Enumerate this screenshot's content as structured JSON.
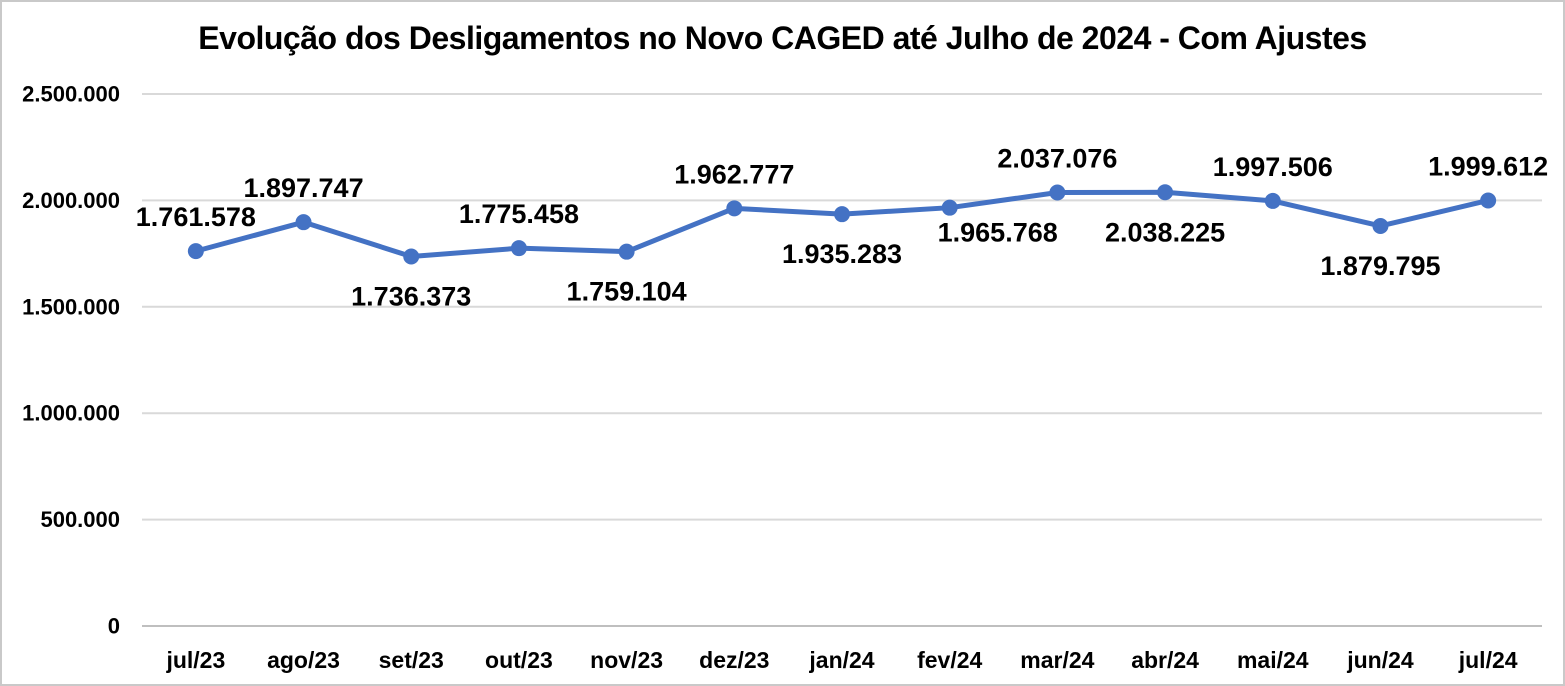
{
  "chart_data": {
    "type": "line",
    "title": "Evolução dos Desligamentos no Novo CAGED até Julho de 2024 - Com Ajustes",
    "xlabel": "",
    "ylabel": "",
    "legend": "none",
    "grid": "horizontal",
    "categories": [
      "jul/23",
      "ago/23",
      "set/23",
      "out/23",
      "nov/23",
      "dez/23",
      "jan/24",
      "fev/24",
      "mar/24",
      "abr/24",
      "mai/24",
      "jun/24",
      "jul/24"
    ],
    "values": [
      1761578,
      1897747,
      1736373,
      1775458,
      1759104,
      1962777,
      1935283,
      1965768,
      2037076,
      2038225,
      1997506,
      1879795,
      1999612
    ],
    "data_labels": [
      "1.761.578",
      "1.897.747",
      "1.736.373",
      "1.775.458",
      "1.759.104",
      "1.962.777",
      "1.935.283",
      "1.965.768",
      "2.037.076",
      "2.038.225",
      "1.997.506",
      "1.879.795",
      "1.999.612"
    ],
    "label_positions": [
      "above",
      "above",
      "below",
      "above",
      "below",
      "above",
      "below",
      "below-right",
      "above",
      "below",
      "above",
      "below",
      "above"
    ],
    "y_axis": {
      "min": 0,
      "max": 2500000,
      "ticks": [
        {
          "label": "2.500.000",
          "value": 2500000
        },
        {
          "label": "2.000.000",
          "value": 2000000
        },
        {
          "label": "1.500.000",
          "value": 1500000
        },
        {
          "label": "1.000.000",
          "value": 1000000
        },
        {
          "label": "500.000",
          "value": 500000
        },
        {
          "label": "0",
          "value": 0
        }
      ]
    },
    "colors": {
      "line": "#4472C4",
      "marker": "#4472C4",
      "gridline": "#D9D9D9",
      "axis_line": "#BFBFBF",
      "text": "#000000",
      "background": "#FFFFFF",
      "frame_border": "#C9C9C9"
    }
  }
}
